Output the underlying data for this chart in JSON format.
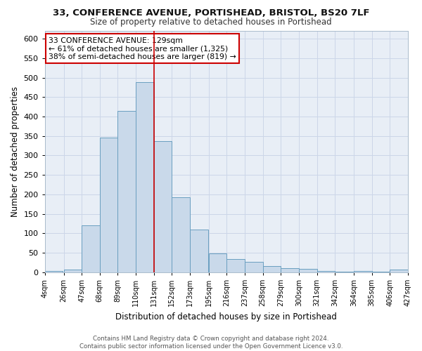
{
  "title1": "33, CONFERENCE AVENUE, PORTISHEAD, BRISTOL, BS20 7LF",
  "title2": "Size of property relative to detached houses in Portishead",
  "xlabel": "Distribution of detached houses by size in Portishead",
  "ylabel": "Number of detached properties",
  "footer1": "Contains HM Land Registry data © Crown copyright and database right 2024.",
  "footer2": "Contains public sector information licensed under the Open Government Licence v3.0.",
  "annotation_line1": "33 CONFERENCE AVENUE: 129sqm",
  "annotation_line2": "← 61% of detached houses are smaller (1,325)",
  "annotation_line3": "38% of semi-detached houses are larger (819) →",
  "bar_left_edges": [
    4,
    26,
    47,
    68,
    89,
    110,
    131,
    152,
    173,
    195,
    216,
    237,
    258,
    279,
    300,
    321,
    342,
    364,
    385,
    406
  ],
  "bar_heights": [
    4,
    7,
    120,
    345,
    415,
    488,
    337,
    192,
    110,
    48,
    34,
    26,
    15,
    10,
    8,
    3,
    2,
    4,
    2,
    6
  ],
  "bin_width": 21,
  "bar_color": "#c9d9ea",
  "bar_edge_color": "#6a9fc0",
  "vline_color": "#cc0000",
  "vline_x": 131,
  "xlim_left": 4,
  "xlim_right": 427,
  "ylim": [
    0,
    620
  ],
  "yticks": [
    0,
    50,
    100,
    150,
    200,
    250,
    300,
    350,
    400,
    450,
    500,
    550,
    600
  ],
  "grid_color": "#ccd6e8",
  "bg_color": "#e8eef6",
  "annotation_box_facecolor": "#ffffff",
  "annotation_box_edgecolor": "#cc0000",
  "tick_labels": [
    "4sqm",
    "26sqm",
    "47sqm",
    "68sqm",
    "89sqm",
    "110sqm",
    "131sqm",
    "152sqm",
    "173sqm",
    "195sqm",
    "216sqm",
    "237sqm",
    "258sqm",
    "279sqm",
    "300sqm",
    "321sqm",
    "342sqm",
    "364sqm",
    "385sqm",
    "406sqm",
    "427sqm"
  ],
  "title1_fontsize": 9.5,
  "title2_fontsize": 8.5,
  "ylabel_fontsize": 8.5,
  "xlabel_fontsize": 8.5,
  "tick_fontsize": 7,
  "ytick_fontsize": 8,
  "annotation_fontsize": 7.8,
  "footer_fontsize": 6.2
}
